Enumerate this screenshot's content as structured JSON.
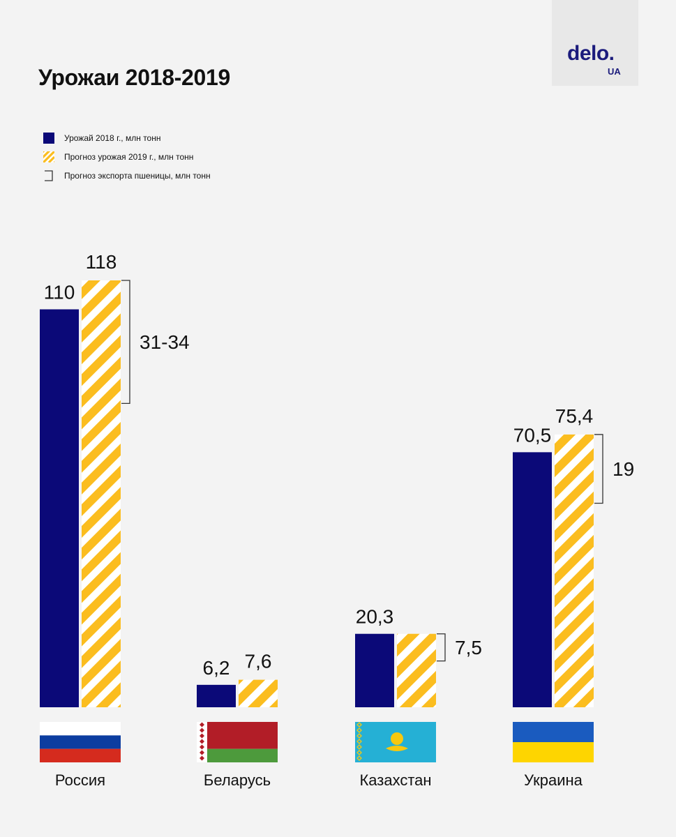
{
  "header": {
    "title": "Урожаи 2018-2019"
  },
  "logo": {
    "main": "delo.",
    "sub": "UA",
    "color": "#1b1b7c"
  },
  "legend": {
    "items": [
      {
        "label": "Урожай 2018 г., млн тонн",
        "type": "solid",
        "color": "#0b0978"
      },
      {
        "label": "Прогноз урожая 2019 г., млн тонн",
        "type": "striped",
        "color": "#fbbd1f"
      },
      {
        "label": "Прогноз экспорта пшеницы, млн тонн",
        "type": "bracket",
        "color": "#333333"
      }
    ]
  },
  "colors": {
    "harvest_2018": "#0b0978",
    "forecast_2019": "#fbbd1f",
    "stripe_bg": "#ffffff",
    "background": "#f3f3f3"
  },
  "chart_data": {
    "type": "bar",
    "title": "Урожаи 2018-2019",
    "categories": [
      "Россия",
      "Беларусь",
      "Казахстан",
      "Украина"
    ],
    "flags": [
      "russia-flag-icon",
      "belarus-flag-icon",
      "kazakhstan-flag-icon",
      "ukraine-flag-icon"
    ],
    "series": [
      {
        "name": "Урожай 2018 г., млн тонн",
        "values": [
          110,
          6.2,
          20.3,
          70.5
        ],
        "labels": [
          "110",
          "6,2",
          "20,3",
          "70,5"
        ]
      },
      {
        "name": "Прогноз урожая 2019 г., млн тонн",
        "values": [
          118,
          7.6,
          20.3,
          75.4
        ],
        "labels": [
          "118",
          "7,6",
          "",
          "75,4"
        ]
      }
    ],
    "export_forecast": {
      "name": "Прогноз экспорта пшеницы, млн тонн",
      "labels": [
        "31-34",
        "",
        "7,5",
        "19"
      ],
      "values": [
        [
          31,
          34
        ],
        null,
        [
          7.5,
          7.5
        ],
        [
          19,
          19
        ]
      ]
    },
    "xlabel": "",
    "ylabel": "",
    "ylim": [
      0,
      118
    ],
    "grid": false,
    "legend_position": "top-left"
  }
}
